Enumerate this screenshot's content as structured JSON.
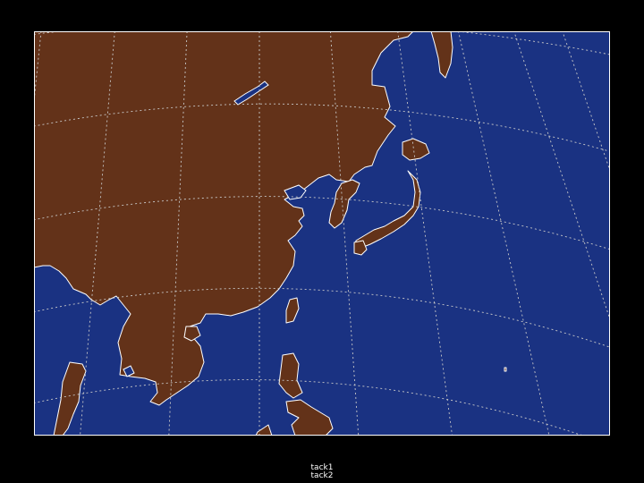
{
  "map": {
    "colors": {
      "background": "#000000",
      "ocean": "#1a3282",
      "land": "#633219",
      "coastline": "#ffffff",
      "graticule": "#c8c8c8"
    },
    "projection": "conic",
    "graticule": "dotted"
  },
  "footer": {
    "line1": "tack1",
    "line2": "tack2"
  }
}
